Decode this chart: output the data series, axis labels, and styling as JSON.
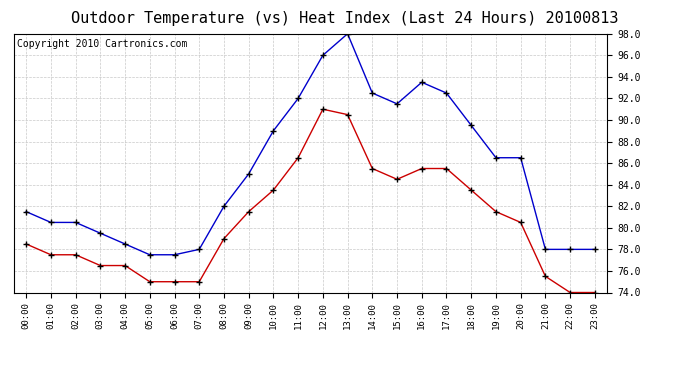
{
  "title": "Outdoor Temperature (vs) Heat Index (Last 24 Hours) 20100813",
  "copyright": "Copyright 2010 Cartronics.com",
  "hours": [
    "00:00",
    "01:00",
    "02:00",
    "03:00",
    "04:00",
    "05:00",
    "06:00",
    "07:00",
    "08:00",
    "09:00",
    "10:00",
    "11:00",
    "12:00",
    "13:00",
    "14:00",
    "15:00",
    "16:00",
    "17:00",
    "18:00",
    "19:00",
    "20:00",
    "21:00",
    "22:00",
    "23:00"
  ],
  "blue_temp": [
    81.5,
    80.5,
    80.5,
    79.5,
    78.5,
    77.5,
    77.5,
    78.0,
    82.0,
    85.0,
    89.0,
    92.0,
    96.0,
    98.0,
    92.5,
    91.5,
    93.5,
    92.5,
    89.5,
    86.5,
    86.5,
    78.0,
    78.0,
    78.0
  ],
  "red_heat": [
    78.5,
    77.5,
    77.5,
    76.5,
    76.5,
    75.0,
    75.0,
    75.0,
    79.0,
    81.5,
    83.5,
    86.5,
    91.0,
    90.5,
    85.5,
    84.5,
    85.5,
    85.5,
    83.5,
    81.5,
    80.5,
    75.5,
    74.0,
    74.0
  ],
  "blue_color": "#0000cc",
  "red_color": "#cc0000",
  "ylim_min": 74.0,
  "ylim_max": 98.0,
  "ytick_interval": 2.0,
  "bg_color": "#ffffff",
  "grid_color": "#bbbbbb",
  "title_fontsize": 11,
  "copyright_fontsize": 7
}
